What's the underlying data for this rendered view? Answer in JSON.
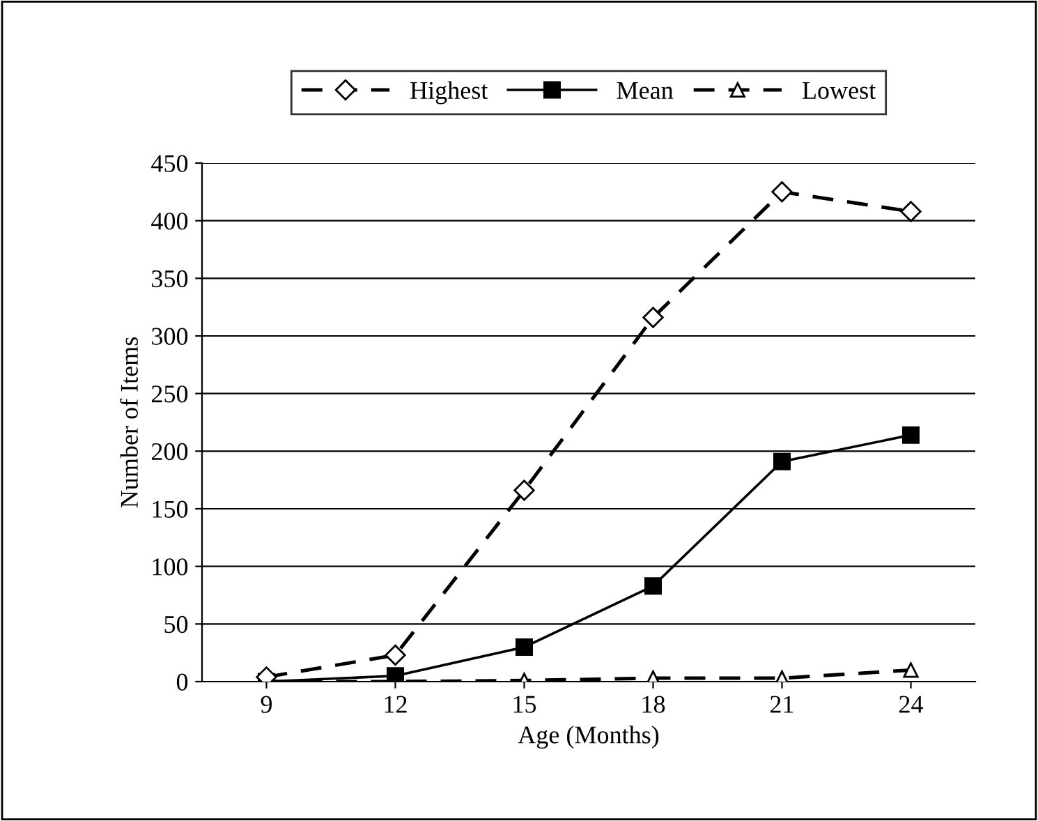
{
  "chart_data": {
    "type": "line",
    "xlabel": "Age (Months)",
    "ylabel": "Number of Items",
    "categories": [
      "9",
      "12",
      "15",
      "18",
      "21",
      "24"
    ],
    "series": [
      {
        "name": "Highest",
        "color": "#000000",
        "marker": "diamond",
        "line_style": "dashed",
        "values": [
          4,
          23,
          166,
          316,
          425,
          408
        ]
      },
      {
        "name": "Mean",
        "color": "#000000",
        "marker": "square",
        "line_style": "solid",
        "values": [
          0,
          5,
          30,
          83,
          191,
          214
        ]
      },
      {
        "name": "Lowest",
        "color": "#000000",
        "marker": "triangle",
        "line_style": "dashed",
        "values": [
          0,
          0,
          1,
          3,
          3,
          10
        ]
      }
    ],
    "ylim": [
      0,
      450
    ],
    "yticks": [
      0,
      50,
      100,
      150,
      200,
      250,
      300,
      350,
      400,
      450
    ],
    "grid": "y",
    "legend": "top"
  }
}
